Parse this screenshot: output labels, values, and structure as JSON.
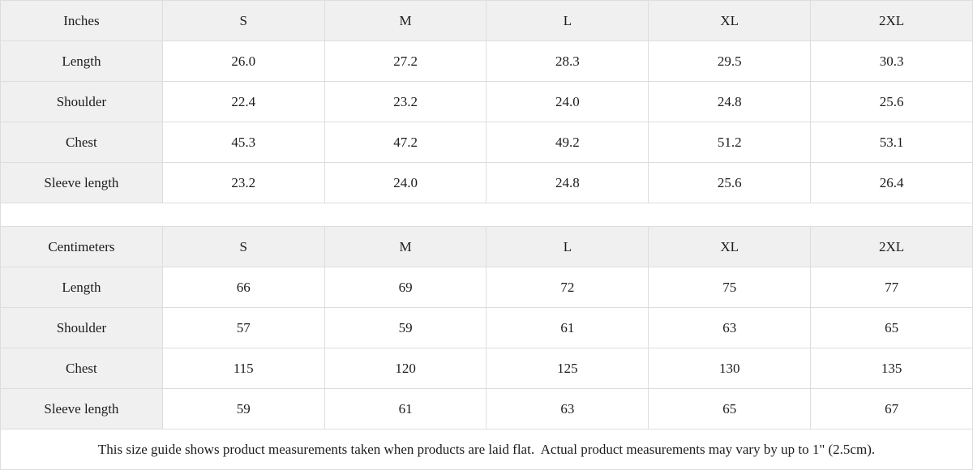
{
  "colors": {
    "header_background": "#f0f0f0",
    "cell_background": "#ffffff",
    "border": "#dddddd",
    "text": "#1c1c1c"
  },
  "chart_data": [
    {
      "type": "table",
      "title": "Inches",
      "columns": [
        "Inches",
        "S",
        "M",
        "L",
        "XL",
        "2XL"
      ],
      "rows": [
        [
          "Length",
          "26.0",
          "27.2",
          "28.3",
          "29.5",
          "30.3"
        ],
        [
          "Shoulder",
          "22.4",
          "23.2",
          "24.0",
          "24.8",
          "25.6"
        ],
        [
          "Chest",
          "45.3",
          "47.2",
          "49.2",
          "51.2",
          "53.1"
        ],
        [
          "Sleeve length",
          "23.2",
          "24.0",
          "24.8",
          "25.6",
          "26.4"
        ]
      ]
    },
    {
      "type": "table",
      "title": "Centimeters",
      "columns": [
        "Centimeters",
        "S",
        "M",
        "L",
        "XL",
        "2XL"
      ],
      "rows": [
        [
          "Length",
          "66",
          "69",
          "72",
          "75",
          "77"
        ],
        [
          "Shoulder",
          "57",
          "59",
          "61",
          "63",
          "65"
        ],
        [
          "Chest",
          "115",
          "120",
          "125",
          "130",
          "135"
        ],
        [
          "Sleeve length",
          "59",
          "61",
          "63",
          "65",
          "67"
        ]
      ]
    }
  ],
  "footer_note": "This size guide shows product measurements taken when products are laid flat.  Actual product measurements may vary by up to 1\" (2.5cm)."
}
